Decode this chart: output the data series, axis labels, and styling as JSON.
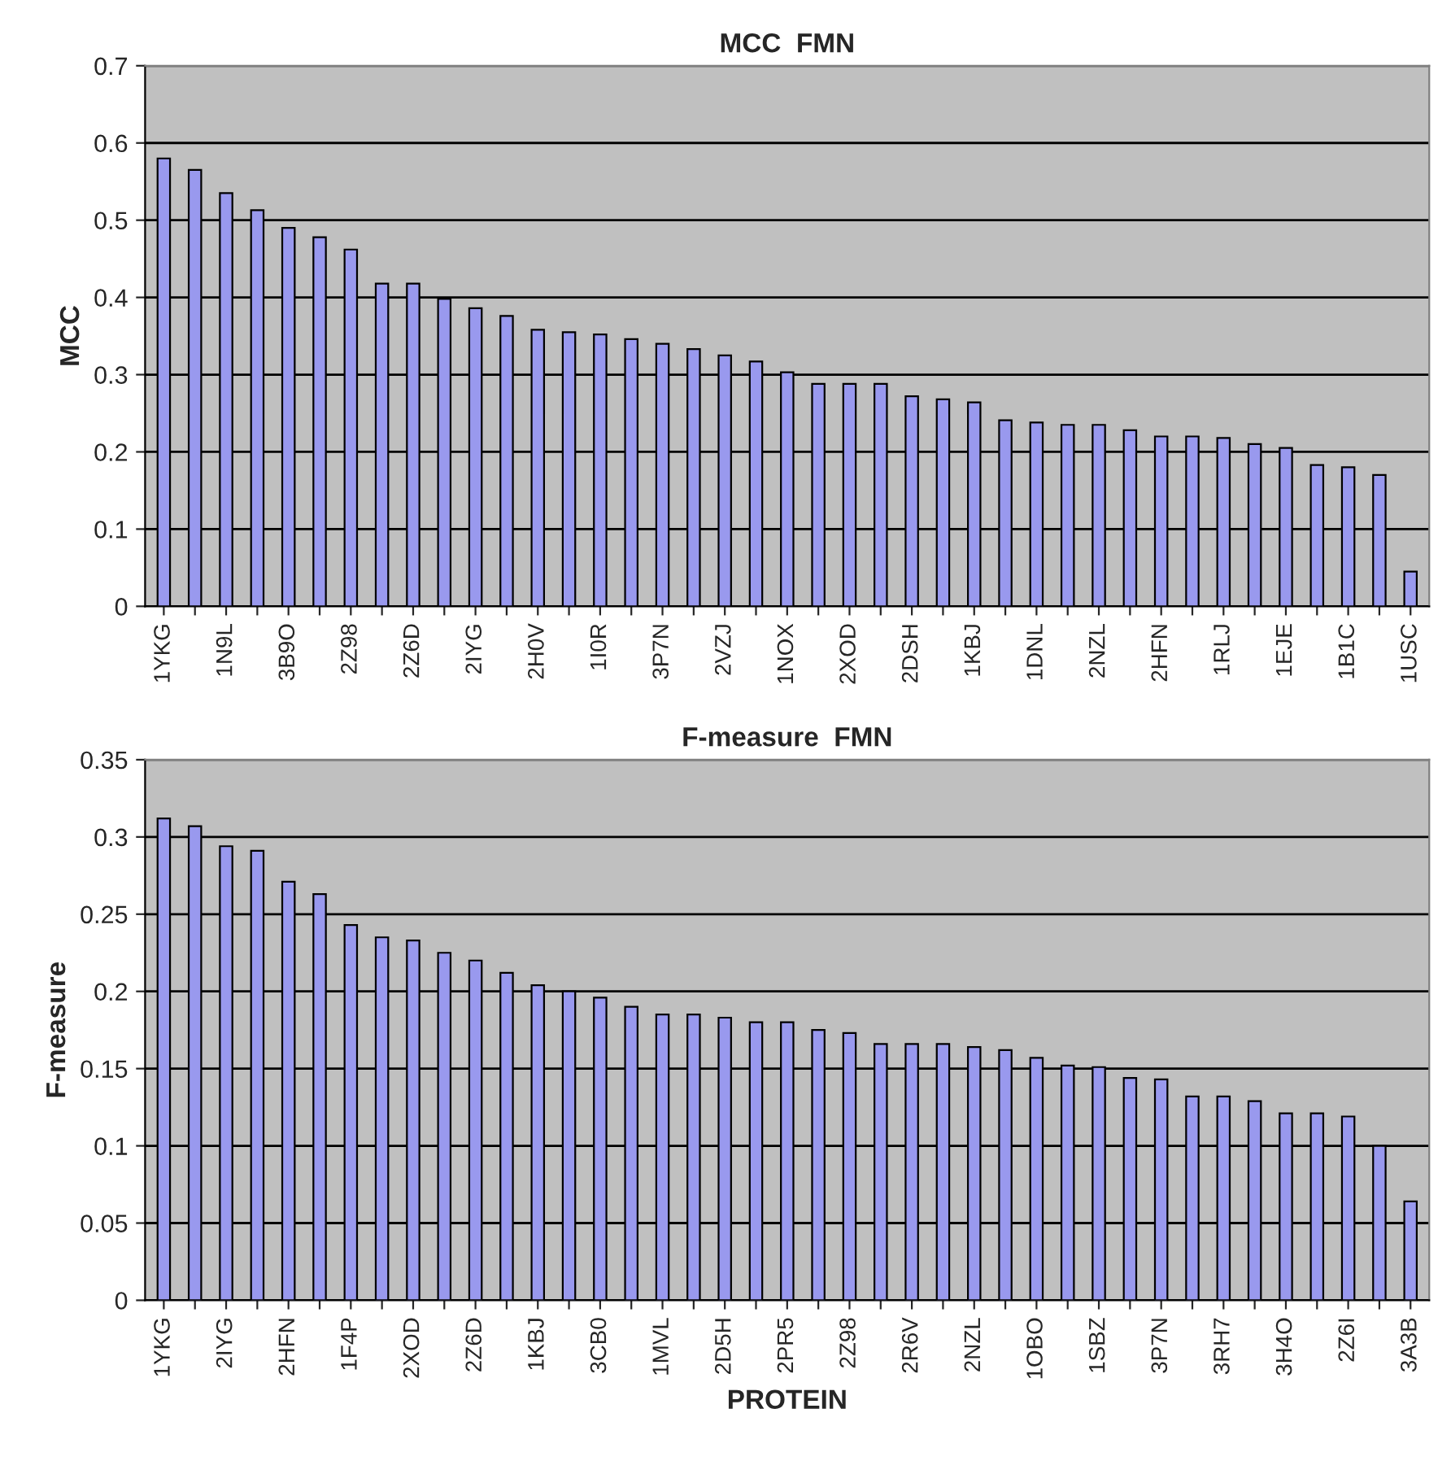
{
  "chart_data": [
    {
      "type": "bar",
      "title": "MCC  FMN",
      "ylabel": "MCC",
      "categories": [
        "1YKG",
        null,
        "1N9L",
        null,
        "3B9O",
        null,
        "2Z98",
        null,
        "2Z6D",
        null,
        "2IYG",
        null,
        "2H0V",
        null,
        "1I0R",
        null,
        "3P7N",
        null,
        "2VZJ",
        null,
        "1NOX",
        null,
        "2XOD",
        null,
        "2DSH",
        null,
        "1KBJ",
        null,
        "1DNL",
        null,
        "2NZL",
        null,
        "2HFN",
        null,
        "1RLJ",
        null,
        "1EJE",
        null,
        "1B1C",
        null,
        "1USC"
      ],
      "values": [
        0.58,
        0.565,
        0.535,
        0.513,
        0.49,
        0.478,
        0.462,
        0.418,
        0.418,
        0.398,
        0.386,
        0.376,
        0.358,
        0.355,
        0.352,
        0.346,
        0.34,
        0.333,
        0.325,
        0.317,
        0.303,
        0.288,
        0.288,
        0.288,
        0.272,
        0.268,
        0.264,
        0.241,
        0.238,
        0.235,
        0.235,
        0.228,
        0.22,
        0.22,
        0.218,
        0.21,
        0.205,
        0.183,
        0.18,
        0.17,
        0.045
      ],
      "color": "#9999ee",
      "ylim": [
        0,
        0.7
      ],
      "yticks": [
        0,
        0.1,
        0.2,
        0.3,
        0.4,
        0.5,
        0.6,
        0.7
      ],
      "grid": "y",
      "legend": false
    },
    {
      "type": "bar",
      "title": "F-measure  FMN",
      "ylabel": "F-measure",
      "xlabel": "PROTEIN",
      "categories": [
        "1YKG",
        null,
        "2IYG",
        null,
        "2HFN",
        null,
        "1F4P",
        null,
        "2XOD",
        null,
        "2Z6D",
        null,
        "1KBJ",
        null,
        "3CB0",
        null,
        "1MVL",
        null,
        "2D5H",
        null,
        "2PR5",
        null,
        "2Z98",
        null,
        "2R6V",
        null,
        "2NZL",
        null,
        "1OBO",
        null,
        "1SBZ",
        null,
        "3P7N",
        null,
        "3RH7",
        null,
        "3H4O",
        null,
        "2Z6I",
        null,
        "3A3B"
      ],
      "values": [
        0.312,
        0.307,
        0.294,
        0.291,
        0.271,
        0.263,
        0.243,
        0.235,
        0.233,
        0.225,
        0.22,
        0.212,
        0.204,
        0.2,
        0.196,
        0.19,
        0.185,
        0.185,
        0.183,
        0.18,
        0.18,
        0.175,
        0.173,
        0.166,
        0.166,
        0.166,
        0.164,
        0.162,
        0.157,
        0.152,
        0.151,
        0.144,
        0.143,
        0.132,
        0.132,
        0.129,
        0.121,
        0.121,
        0.119,
        0.1,
        0.064
      ],
      "color": "#9999ee",
      "ylim": [
        0,
        0.35
      ],
      "yticks": [
        0,
        0.05,
        0.1,
        0.15,
        0.2,
        0.25,
        0.3,
        0.35
      ],
      "grid": "y",
      "legend": false
    }
  ]
}
